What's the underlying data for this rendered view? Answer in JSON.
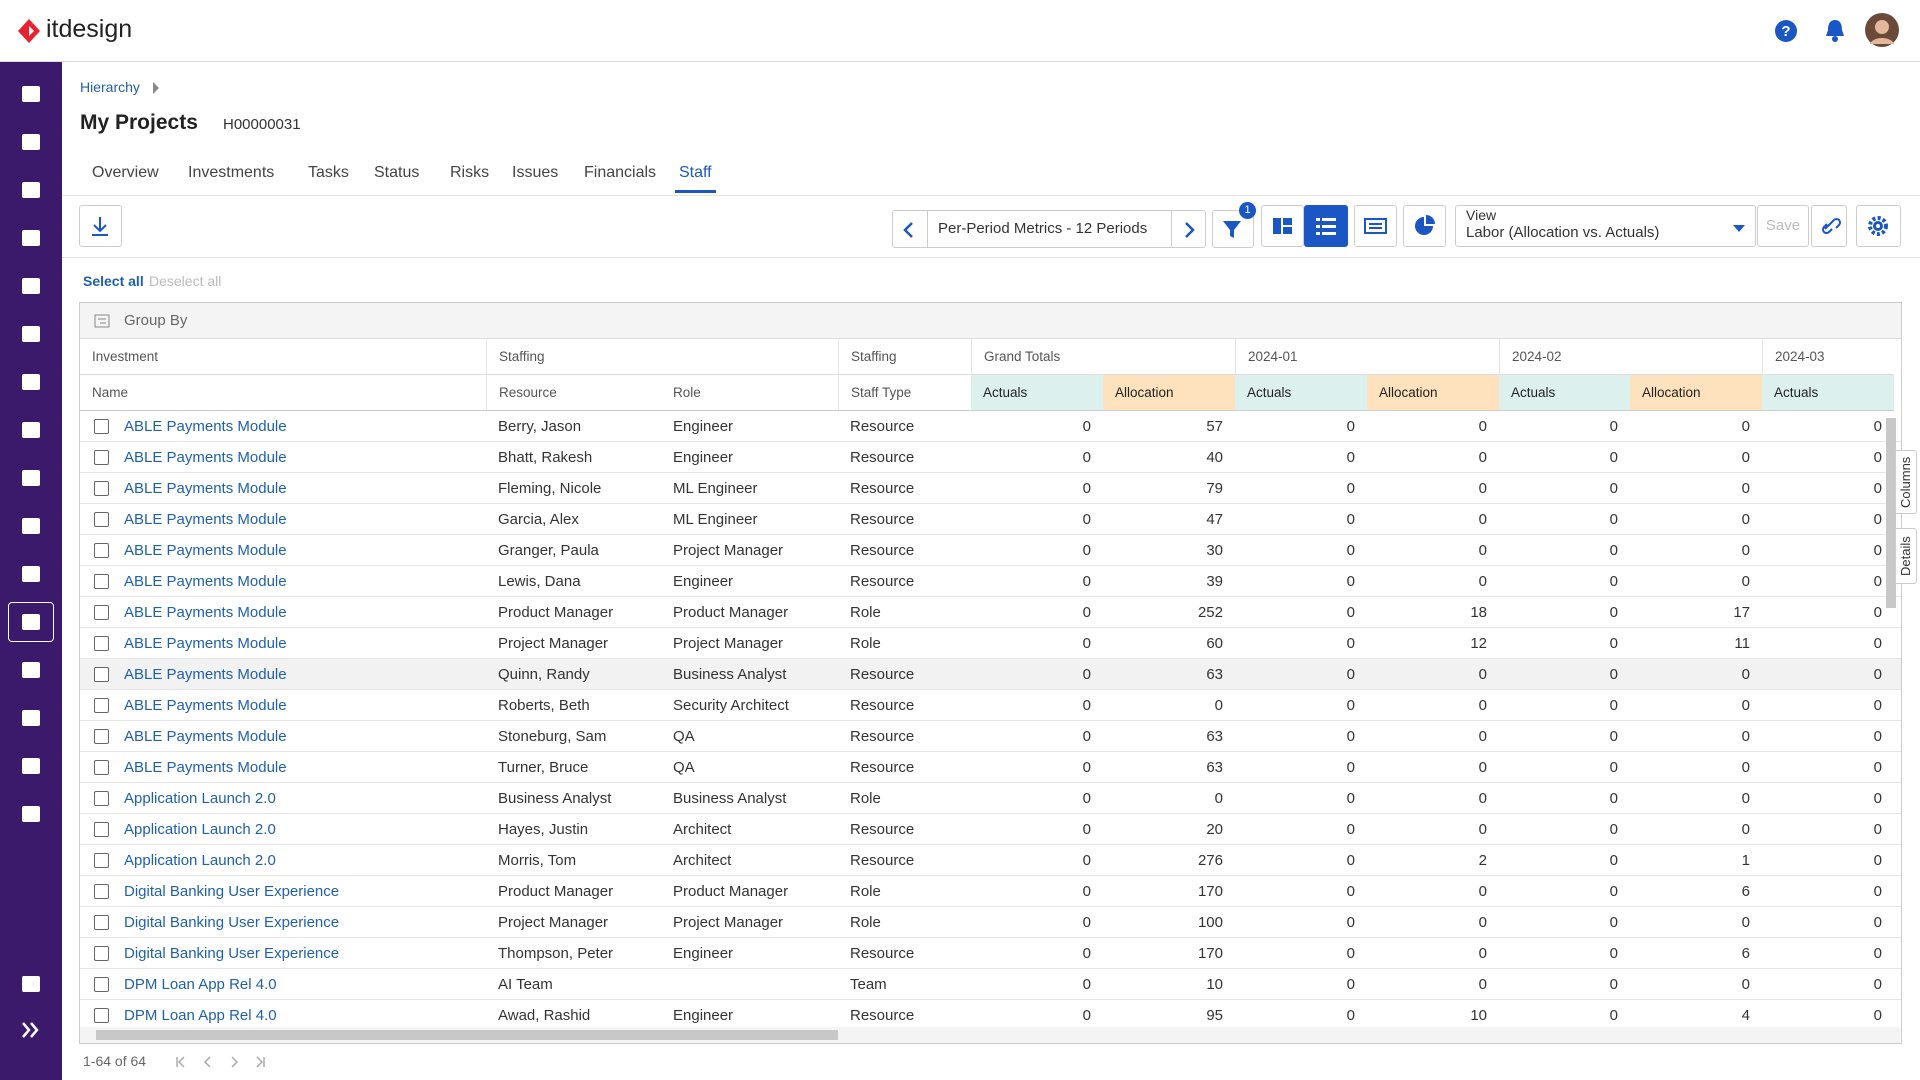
{
  "header": {
    "logo": "itdesign"
  },
  "breadcrumb": "Hierarchy",
  "page": {
    "title": "My Projects",
    "id": "H00000031"
  },
  "tabs": {
    "items": [
      "Overview",
      "Investments",
      "Tasks",
      "Status",
      "Risks",
      "Issues",
      "Financials",
      "Staff"
    ],
    "active": 7
  },
  "toolbar": {
    "period": "Per-Period Metrics - 12 Periods",
    "filter_count": 1,
    "view_label": "View",
    "view": "Labor (Allocation vs. Actuals)",
    "save": "Save"
  },
  "selection": {
    "select_all": "Select all",
    "deselect_all": "Deselect all"
  },
  "group_by": "Group By",
  "table": {
    "groups": [
      "Investment",
      "Staffing",
      "Staffing",
      "Grand Totals",
      "2024-01",
      "2024-02",
      "2024-03"
    ],
    "columns": [
      "Name",
      "Resource",
      "Role",
      "Staff Type",
      "Actuals",
      "Allocation",
      "Actuals",
      "Allocation",
      "Actuals",
      "Allocation",
      "Actuals"
    ],
    "rows": [
      [
        "ABLE Payments Module",
        "Berry, Jason",
        "Engineer",
        "Resource",
        0,
        57,
        0,
        0,
        0,
        0,
        0
      ],
      [
        "ABLE Payments Module",
        "Bhatt, Rakesh",
        "Engineer",
        "Resource",
        0,
        40,
        0,
        0,
        0,
        0,
        0
      ],
      [
        "ABLE Payments Module",
        "Fleming, Nicole",
        "ML Engineer",
        "Resource",
        0,
        79,
        0,
        0,
        0,
        0,
        0
      ],
      [
        "ABLE Payments Module",
        "Garcia, Alex",
        "ML Engineer",
        "Resource",
        0,
        47,
        0,
        0,
        0,
        0,
        0
      ],
      [
        "ABLE Payments Module",
        "Granger, Paula",
        "Project Manager",
        "Resource",
        0,
        30,
        0,
        0,
        0,
        0,
        0
      ],
      [
        "ABLE Payments Module",
        "Lewis, Dana",
        "Engineer",
        "Resource",
        0,
        39,
        0,
        0,
        0,
        0,
        0
      ],
      [
        "ABLE Payments Module",
        "Product Manager",
        "Product Manager",
        "Role",
        0,
        252,
        0,
        18,
        0,
        17,
        0
      ],
      [
        "ABLE Payments Module",
        "Project Manager",
        "Project Manager",
        "Role",
        0,
        60,
        0,
        12,
        0,
        11,
        0
      ],
      [
        "ABLE Payments Module",
        "Quinn, Randy",
        "Business Analyst",
        "Resource",
        0,
        63,
        0,
        0,
        0,
        0,
        0
      ],
      [
        "ABLE Payments Module",
        "Roberts, Beth",
        "Security Architect",
        "Resource",
        0,
        0,
        0,
        0,
        0,
        0,
        0
      ],
      [
        "ABLE Payments Module",
        "Stoneburg, Sam",
        "QA",
        "Resource",
        0,
        63,
        0,
        0,
        0,
        0,
        0
      ],
      [
        "ABLE Payments Module",
        "Turner, Bruce",
        "QA",
        "Resource",
        0,
        63,
        0,
        0,
        0,
        0,
        0
      ],
      [
        "Application Launch 2.0",
        "Business Analyst",
        "Business Analyst",
        "Role",
        0,
        0,
        0,
        0,
        0,
        0,
        0
      ],
      [
        "Application Launch 2.0",
        "Hayes, Justin",
        "Architect",
        "Resource",
        0,
        20,
        0,
        0,
        0,
        0,
        0
      ],
      [
        "Application Launch 2.0",
        "Morris, Tom",
        "Architect",
        "Resource",
        0,
        276,
        0,
        2,
        0,
        1,
        0
      ],
      [
        "Digital Banking User Experience",
        "Product Manager",
        "Product Manager",
        "Role",
        0,
        170,
        0,
        0,
        0,
        6,
        0
      ],
      [
        "Digital Banking User Experience",
        "Project Manager",
        "Project Manager",
        "Role",
        0,
        100,
        0,
        0,
        0,
        0,
        0
      ],
      [
        "Digital Banking User Experience",
        "Thompson, Peter",
        "Engineer",
        "Resource",
        0,
        170,
        0,
        0,
        0,
        6,
        0
      ],
      [
        "DPM Loan App Rel 4.0",
        "AI Team",
        null,
        "Team",
        0,
        10,
        0,
        0,
        0,
        0,
        0
      ],
      [
        "DPM Loan App Rel 4.0",
        "Awad, Rashid",
        "Engineer",
        "Resource",
        0,
        95,
        0,
        10,
        0,
        4,
        0
      ]
    ]
  },
  "side_tabs": [
    "Columns",
    "Details"
  ],
  "pagination": "1-64 of 64"
}
